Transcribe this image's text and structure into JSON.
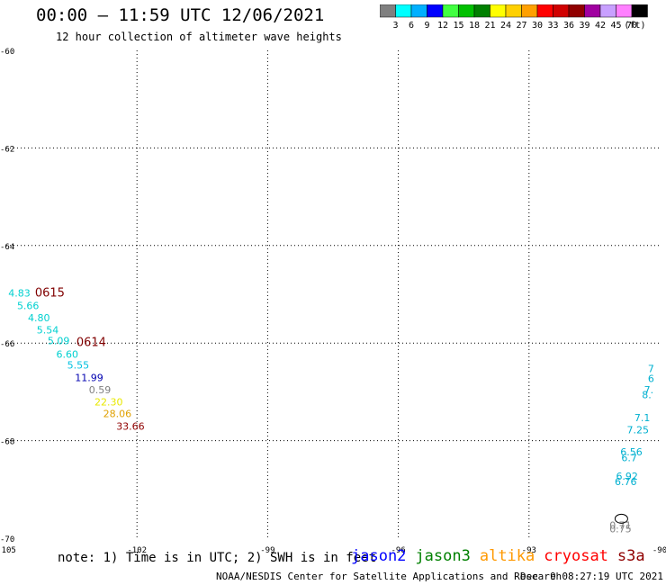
{
  "header": {
    "title": "00:00 – 11:59 UTC 12/06/2021",
    "subtitle": "12 hour collection of altimeter wave heights"
  },
  "colorbar": {
    "colors": [
      "#808080",
      "#00ffff",
      "#00b0ff",
      "#0000ff",
      "#40ff40",
      "#00c000",
      "#008000",
      "#ffff00",
      "#ffd000",
      "#ffa000",
      "#ff0000",
      "#d00000",
      "#900000",
      "#a000a0",
      "#c8a0ff",
      "#ff80ff",
      "#000000"
    ],
    "labels": [
      "3",
      "6",
      "9",
      "12",
      "15",
      "18",
      "21",
      "24",
      "27",
      "30",
      "33",
      "36",
      "39",
      "42",
      "45",
      "70"
    ],
    "unit": "(ft)"
  },
  "chart_data": {
    "type": "scatter",
    "xlim": [
      -105,
      -90
    ],
    "ylim": [
      -70,
      -60
    ],
    "x_ticks": [
      -105,
      -102,
      -99,
      -96,
      -93,
      -90
    ],
    "y_ticks": [
      -60,
      -62,
      -64,
      -66,
      -68,
      -70
    ],
    "x_tick_labels": [
      "-105",
      "-102",
      "-99",
      "-96",
      "-93",
      "-90"
    ],
    "y_tick_labels": [
      "-60",
      "-62",
      "-64",
      "-66",
      "-68",
      "-70"
    ],
    "grid": "dotted",
    "points": [
      {
        "lon": -104.7,
        "lat": -65.05,
        "text": "4.83",
        "color": "#00d0d0"
      },
      {
        "lon": -104.5,
        "lat": -65.3,
        "text": "5.66",
        "color": "#00d0d0"
      },
      {
        "lon": -104.25,
        "lat": -65.55,
        "text": "4.80",
        "color": "#00d0d0"
      },
      {
        "lon": -104.05,
        "lat": -65.8,
        "text": "5.54",
        "color": "#00d0d0"
      },
      {
        "lon": -103.8,
        "lat": -66.02,
        "text": "5.09",
        "color": "#00d0d0"
      },
      {
        "lon": -103.6,
        "lat": -66.3,
        "text": "6.60",
        "color": "#00d0d0"
      },
      {
        "lon": -103.35,
        "lat": -66.52,
        "text": "5.55",
        "color": "#00c0e0"
      },
      {
        "lon": -103.1,
        "lat": -66.78,
        "text": "11.99",
        "color": "#0000b0"
      },
      {
        "lon": -102.85,
        "lat": -67.03,
        "text": "0.59",
        "color": "#808080"
      },
      {
        "lon": -102.65,
        "lat": -67.28,
        "text": "22.30",
        "color": "#e8e800"
      },
      {
        "lon": -102.45,
        "lat": -67.52,
        "text": "28.06",
        "color": "#e0a000"
      },
      {
        "lon": -102.15,
        "lat": -67.78,
        "text": "33.66",
        "color": "#900000"
      },
      {
        "lon": -90.2,
        "lat": -66.6,
        "text": "7",
        "color": "#00b0d0"
      },
      {
        "lon": -90.2,
        "lat": -66.8,
        "text": "6",
        "color": "#00b0d0"
      },
      {
        "lon": -90.25,
        "lat": -67.03,
        "text": "7.",
        "color": "#00b0d0"
      },
      {
        "lon": -90.3,
        "lat": -67.13,
        "text": "8.",
        "color": "#00b0d0"
      },
      {
        "lon": -90.4,
        "lat": -67.6,
        "text": "7.1",
        "color": "#00b0d0"
      },
      {
        "lon": -90.5,
        "lat": -67.85,
        "text": "7.25",
        "color": "#00b0d0"
      },
      {
        "lon": -90.65,
        "lat": -68.3,
        "text": "6.56",
        "color": "#00b0d0"
      },
      {
        "lon": -90.7,
        "lat": -68.42,
        "text": "6.7",
        "color": "#00b0d0"
      },
      {
        "lon": -90.75,
        "lat": -68.8,
        "text": "6.92",
        "color": "#00b0d0"
      },
      {
        "lon": -90.78,
        "lat": -68.91,
        "text": "6.76",
        "color": "#00b0d0"
      },
      {
        "lon": -90.9,
        "lat": -69.81,
        "text": "0.71",
        "color": "#808080"
      },
      {
        "lon": -90.9,
        "lat": -69.88,
        "text": "0.75",
        "color": "#808080"
      }
    ],
    "time_labels": [
      {
        "lon": -104.0,
        "lat": -65.05,
        "text": "0615",
        "color": "#800000"
      },
      {
        "lon": -103.05,
        "lat": -66.06,
        "text": "0614",
        "color": "#800000"
      }
    ]
  },
  "note": "note: 1) Time is in UTC; 2) SWH is in feet",
  "satellites": [
    {
      "name": "jason2",
      "color": "#0000ff"
    },
    {
      "name": "jason3",
      "color": "#008000"
    },
    {
      "name": "altika",
      "color": "#ff9900"
    },
    {
      "name": "cryosat",
      "color": "#ff0000"
    },
    {
      "name": "s3a",
      "color": "#900000"
    }
  ],
  "footer": "NOAA/NESDIS Center for Satellite Applications and Research",
  "timestamp": "Dec  9 08:27:19 UTC 2021"
}
